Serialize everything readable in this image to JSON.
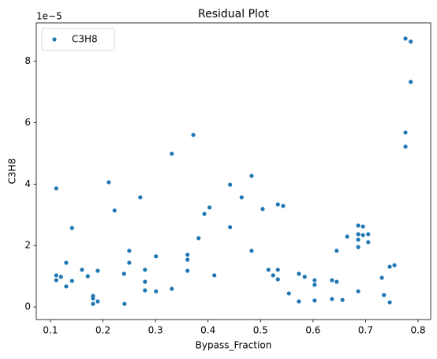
{
  "chart_data": {
    "type": "scatter",
    "title": "Residual Plot",
    "x_label": "Bypass_Fraction",
    "y_label": "C3H8",
    "y_offset_label": "1e−5",
    "legend": "upper left",
    "xlim": [
      0.073,
      0.824
    ],
    "ylim": [
      -0.41,
      9.25
    ],
    "xticks": [
      0.1,
      0.2,
      0.3,
      0.4,
      0.5,
      0.6,
      0.7,
      0.8
    ],
    "yticks": [
      0,
      2,
      4,
      6,
      8
    ],
    "series": [
      {
        "name": "C3H8",
        "color": "#1f77b4",
        "x": [
          0.111,
          0.111,
          0.111,
          0.12,
          0.13,
          0.13,
          0.141,
          0.141,
          0.16,
          0.171,
          0.181,
          0.181,
          0.181,
          0.19,
          0.19,
          0.211,
          0.222,
          0.24,
          0.241,
          0.25,
          0.25,
          0.271,
          0.28,
          0.28,
          0.28,
          0.301,
          0.301,
          0.331,
          0.331,
          0.361,
          0.361,
          0.361,
          0.372,
          0.382,
          0.393,
          0.403,
          0.412,
          0.442,
          0.442,
          0.464,
          0.483,
          0.483,
          0.504,
          0.515,
          0.524,
          0.533,
          0.533,
          0.533,
          0.543,
          0.554,
          0.573,
          0.573,
          0.584,
          0.603,
          0.603,
          0.603,
          0.636,
          0.636,
          0.645,
          0.645,
          0.656,
          0.665,
          0.686,
          0.686,
          0.686,
          0.686,
          0.686,
          0.695,
          0.695,
          0.705,
          0.705,
          0.731,
          0.735,
          0.746,
          0.746,
          0.755,
          0.776,
          0.776,
          0.776,
          0.786,
          0.786
        ],
        "values": [
          3.86,
          1.03,
          0.87,
          0.98,
          1.44,
          0.67,
          0.85,
          2.57,
          1.21,
          1.0,
          0.36,
          0.28,
          0.1,
          0.18,
          1.18,
          4.06,
          3.14,
          1.08,
          0.1,
          1.83,
          1.44,
          3.57,
          1.21,
          0.82,
          0.54,
          1.65,
          0.51,
          4.99,
          0.59,
          1.7,
          1.54,
          1.18,
          5.6,
          2.24,
          3.03,
          3.24,
          1.03,
          3.98,
          2.6,
          3.57,
          4.27,
          1.83,
          3.19,
          1.21,
          1.03,
          1.21,
          3.34,
          0.9,
          3.29,
          0.44,
          1.08,
          0.18,
          0.98,
          0.87,
          0.72,
          0.21,
          0.87,
          0.26,
          0.82,
          1.83,
          0.23,
          2.29,
          2.37,
          2.65,
          2.19,
          1.95,
          0.51,
          2.62,
          2.34,
          2.11,
          2.37,
          0.95,
          0.39,
          0.15,
          1.31,
          1.36,
          8.74,
          5.68,
          5.22,
          8.64,
          7.33
        ]
      }
    ]
  }
}
